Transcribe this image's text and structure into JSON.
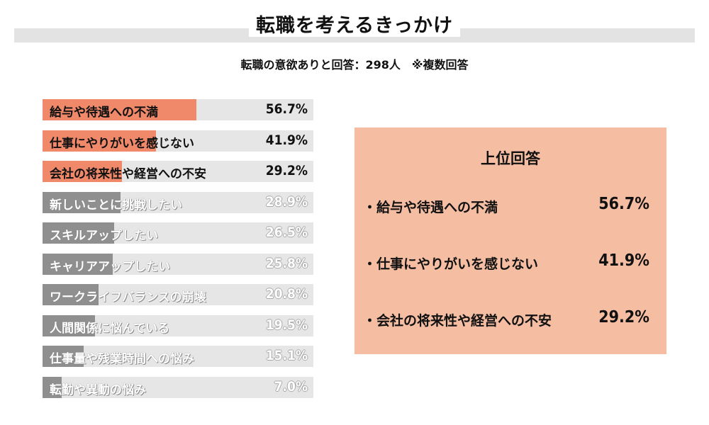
{
  "header": {
    "title": "転職を考えるきっかけ",
    "subtitle": "転職の意欲ありと回答：298人　※複数回答"
  },
  "chart_data": {
    "type": "bar",
    "orientation": "horizontal",
    "categories": [
      "給与や待遇への不満",
      "仕事にやりがいを感じない",
      "会社の将来性や経営への不安",
      "新しいことに挑戦したい",
      "スキルアップしたい",
      "キャリアアップしたい",
      "ワークライフバランスの崩壊",
      "人間関係に悩んでいる",
      "仕事量や残業時間への悩み",
      "転勤や異動の悩み"
    ],
    "values": [
      56.7,
      41.9,
      29.2,
      28.9,
      26.5,
      25.8,
      20.8,
      19.5,
      15.1,
      7.0
    ],
    "value_labels": [
      "56.7%",
      "41.9%",
      "29.2%",
      "28.9%",
      "26.5%",
      "25.8%",
      "20.8%",
      "19.5%",
      "15.1%",
      "7.0%"
    ],
    "xlim": [
      0,
      100
    ],
    "highlight_count": 3,
    "colors": {
      "highlight": "#f0896a",
      "rest": "#8f8f8f",
      "track": "#e6e6e6"
    }
  },
  "top_panel": {
    "title": "上位回答",
    "background": "#f5bea2",
    "items": [
      {
        "label": "・給与や待遇への不満",
        "value": "56.7%"
      },
      {
        "label": "・仕事にやりがいを感じない",
        "value": "41.9%"
      },
      {
        "label": "・会社の将来性や経営への不安",
        "value": "29.2%"
      }
    ]
  }
}
